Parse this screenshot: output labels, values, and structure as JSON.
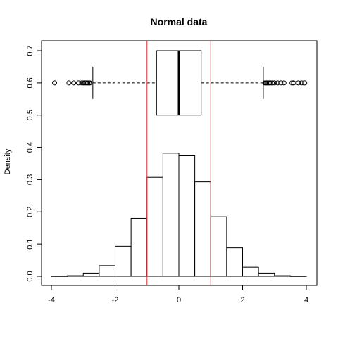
{
  "chart_data": {
    "type": "bar",
    "title": "Normal data",
    "xlabel": "",
    "ylabel": "Density",
    "xlim": [
      -4,
      4
    ],
    "ylim": [
      0,
      0.7
    ],
    "x_ticks": [
      -4,
      -2,
      0,
      2,
      4
    ],
    "x_tick_labels": [
      "-4",
      "-2",
      "0",
      "2",
      "4"
    ],
    "y_ticks": [
      0,
      0.1,
      0.2,
      0.3,
      0.4,
      0.5,
      0.6,
      0.7
    ],
    "y_tick_labels": [
      "0.0",
      "0.1",
      "0.2",
      "0.3",
      "0.4",
      "0.5",
      "0.6",
      "0.7"
    ],
    "grid": false,
    "histogram": {
      "bin_edges": [
        -4,
        -3.5,
        -3,
        -2.5,
        -2,
        -1.5,
        -1,
        -0.5,
        0,
        0.5,
        1,
        1.5,
        2,
        2.5,
        3,
        3.5,
        4
      ],
      "density": [
        0.0005,
        0.002,
        0.01,
        0.033,
        0.093,
        0.18,
        0.307,
        0.382,
        0.374,
        0.293,
        0.185,
        0.088,
        0.028,
        0.01,
        0.002,
        0.0005
      ],
      "color": "#ffffff",
      "edge_color": "#000000"
    },
    "boxplot": {
      "orientation": "horizontal",
      "q1": -0.7,
      "median": 0.0,
      "q3": 0.7,
      "whisker_low": -2.7,
      "whisker_high": 2.65,
      "y_center": 0.6,
      "box_ymin": 0.5,
      "box_ymax": 0.7,
      "whisker_cap_ymin": 0.55,
      "whisker_cap_ymax": 0.65,
      "outliers_low": [
        -3.9,
        -3.45,
        -3.3,
        -3.15,
        -3.05,
        -3.0,
        -2.95,
        -2.9,
        -2.86,
        -2.82,
        -2.79
      ],
      "outliers_high": [
        2.7,
        2.73,
        2.76,
        2.8,
        2.84,
        2.88,
        2.93,
        3.0,
        3.1,
        3.2,
        3.3,
        3.55,
        3.6,
        3.75,
        3.85,
        3.95
      ]
    },
    "reference_lines": {
      "orientation": "vertical",
      "x": [
        -1,
        1
      ],
      "color": "#e03030"
    }
  }
}
